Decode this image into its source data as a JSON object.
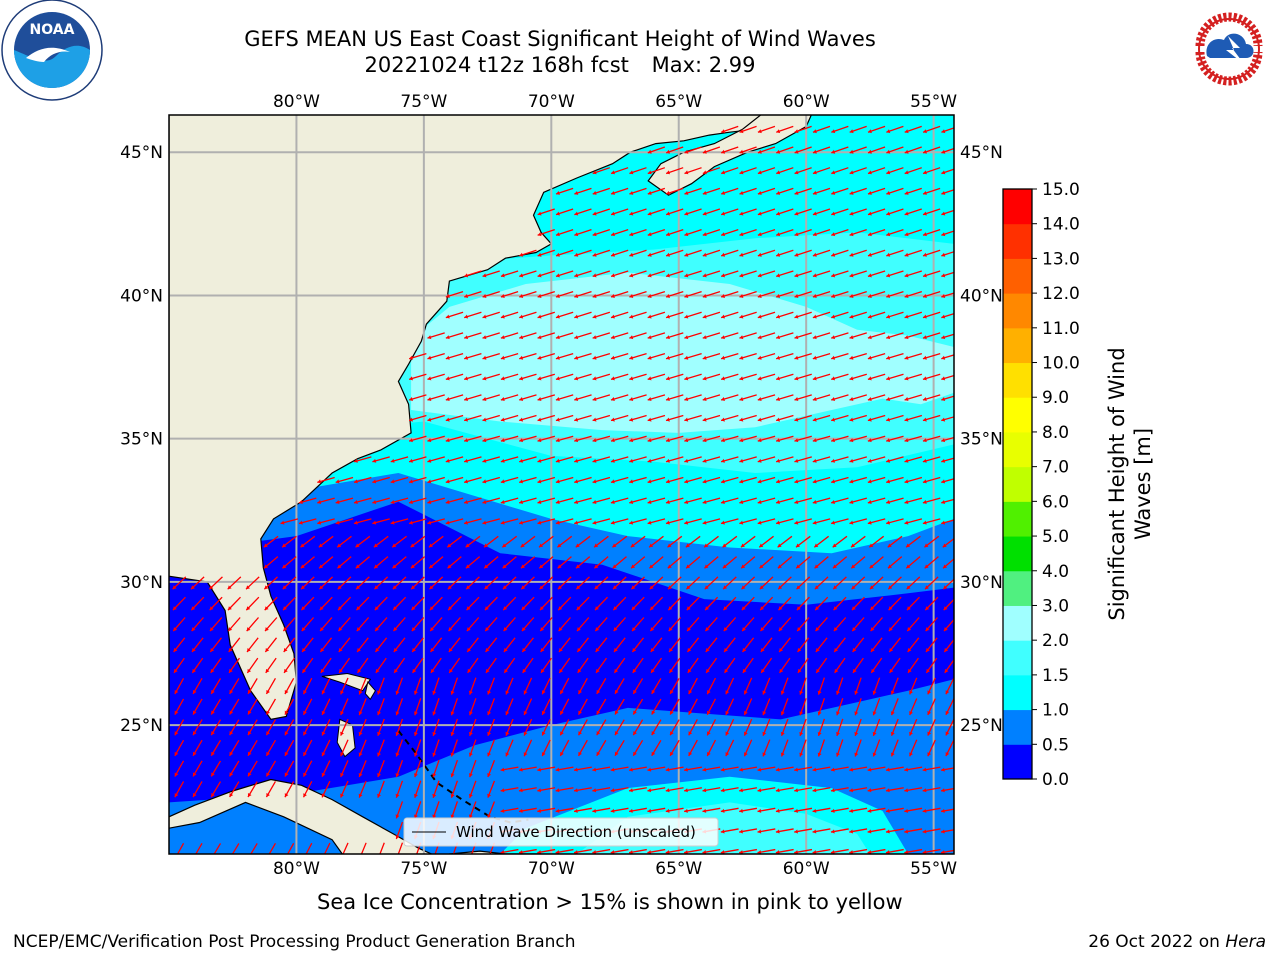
{
  "title": {
    "line1": "GEFS MEAN US East Coast Significant Height of Wind Waves",
    "run": "20221024 t12z 168h fcst",
    "max_label": "Max: 2.99"
  },
  "subtitle": "Sea Ice Concentration > 15% is shown in pink to yellow",
  "footer": {
    "left": "NCEP/EMC/Verification Post Processing Product Generation Branch",
    "date": "26 Oct 2022 on",
    "host": "Hera"
  },
  "logos": {
    "left": "noaa-logo",
    "right": "nws-logo"
  },
  "map": {
    "lon_range": [
      -85,
      -54.2
    ],
    "lat_range": [
      20.5,
      46.3
    ],
    "lon_ticks": [
      -80,
      -75,
      -70,
      -65,
      -60,
      -55
    ],
    "lon_labels": [
      "80°W",
      "75°W",
      "70°W",
      "65°W",
      "60°W",
      "55°W"
    ],
    "lat_ticks": [
      25,
      30,
      35,
      40,
      45
    ],
    "lat_labels": [
      "25°N",
      "30°N",
      "35°N",
      "40°N",
      "45°N"
    ],
    "land_color": "#efeedc",
    "grid_color": "#b0b0b0",
    "arrow_color": "#ff0000",
    "legend_label": "Wind Wave Direction (unscaled)"
  },
  "colorbar": {
    "label": "Significant Height of Wind Waves [m]",
    "ticks": [
      "0.0",
      "0.5",
      "1.0",
      "1.5",
      "2.0",
      "3.0",
      "4.0",
      "5.0",
      "6.0",
      "7.0",
      "8.0",
      "9.0",
      "10.0",
      "11.0",
      "12.0",
      "13.0",
      "14.0",
      "15.0"
    ],
    "colors": [
      "#0000ff",
      "#0080ff",
      "#00ffff",
      "#40ffff",
      "#a0ffff",
      "#50f080",
      "#00e000",
      "#50f000",
      "#c0ff00",
      "#e8ff00",
      "#ffff00",
      "#ffe000",
      "#ffb000",
      "#ff8800",
      "#ff6000",
      "#ff3000",
      "#ff0000"
    ]
  }
}
